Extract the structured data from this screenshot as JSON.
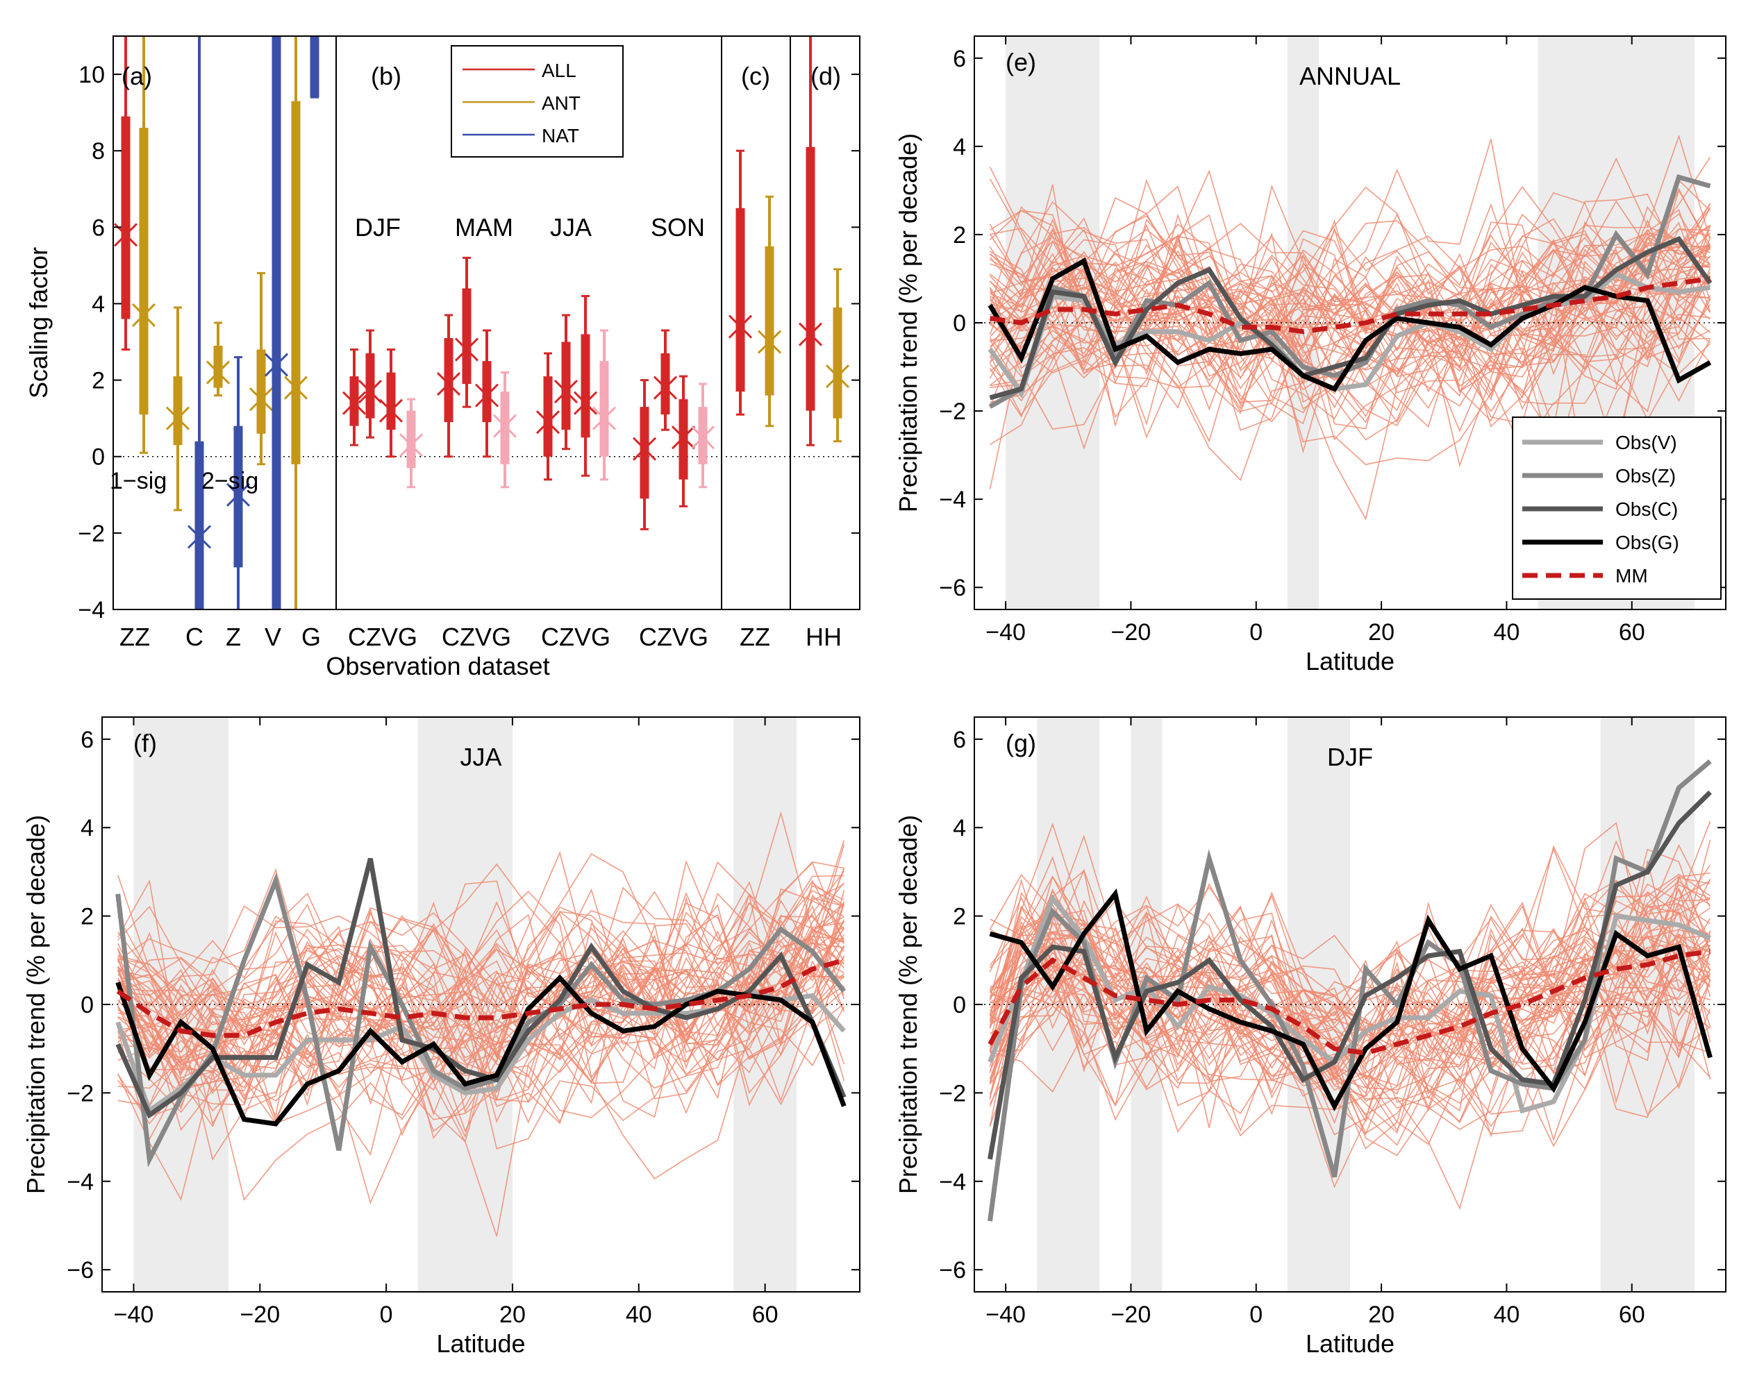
{
  "chart_data": [
    {
      "id": "scaling",
      "type": "errorbar",
      "ylabel": "Scaling factor",
      "xlabel": "Observation dataset",
      "ylim": [
        -4,
        11
      ],
      "yticks": [
        -4,
        -2,
        0,
        2,
        4,
        6,
        8,
        10
      ],
      "legend": {
        "placement": "top-center",
        "entries": [
          {
            "name": "ALL",
            "color": "#d62728"
          },
          {
            "name": "ANT",
            "color": "#c4961a"
          },
          {
            "name": "NAT",
            "color": "#3a4fa8"
          }
        ]
      },
      "panel_labels": [
        "(a)",
        "(b)",
        "(c)",
        "(d)"
      ],
      "season_labels": [
        "DJF",
        "MAM",
        "JJA",
        "SON"
      ],
      "sig_labels": [
        "1−sig",
        "2−sig"
      ],
      "xtick_labels": [
        "ZZ",
        "C",
        "Z",
        "V",
        "G",
        "CZVG",
        "CZVG",
        "CZVG",
        "CZVG",
        "ZZ",
        "HH"
      ],
      "groups": [
        {
          "panel": "a",
          "forcing": "ALL",
          "dataset": "Z",
          "best": 5.8,
          "lo1": 3.6,
          "hi1": 8.9,
          "lo2": 2.8,
          "hi2": 11
        },
        {
          "panel": "a",
          "forcing": "ANT",
          "dataset": "Z",
          "best": 3.7,
          "lo1": 1.1,
          "hi1": 8.6,
          "lo2": 0.1,
          "hi2": 11
        },
        {
          "panel": "a",
          "forcing": "ANT",
          "dataset": "C",
          "best": 1.0,
          "lo1": 0.3,
          "hi1": 2.1,
          "lo2": -1.4,
          "hi2": 3.9
        },
        {
          "panel": "a",
          "forcing": "NAT",
          "dataset": "C",
          "best": -2.1,
          "lo1": -4,
          "hi1": 0.4,
          "lo2": -4,
          "hi2": 11
        },
        {
          "panel": "a",
          "forcing": "ANT",
          "dataset": "Z",
          "best": 2.2,
          "lo1": 1.8,
          "hi1": 2.9,
          "lo2": 1.6,
          "hi2": 3.5
        },
        {
          "panel": "a",
          "forcing": "NAT",
          "dataset": "Z",
          "best": -1.0,
          "lo1": -2.9,
          "hi1": 0.8,
          "lo2": -4,
          "hi2": 2.6
        },
        {
          "panel": "a",
          "forcing": "ANT",
          "dataset": "V",
          "best": 1.5,
          "lo1": 0.6,
          "hi1": 2.8,
          "lo2": -0.2,
          "hi2": 4.8
        },
        {
          "panel": "a",
          "forcing": "NAT",
          "dataset": "V",
          "best": 2.4,
          "lo1": -4,
          "hi1": 11,
          "lo2": -4,
          "hi2": 11
        },
        {
          "panel": "a",
          "forcing": "ANT",
          "dataset": "G",
          "best": 1.8,
          "lo1": -0.2,
          "hi1": 9.3,
          "lo2": -4,
          "hi2": 11
        },
        {
          "panel": "a",
          "forcing": "NAT",
          "dataset": "G",
          "best": 11,
          "lo1": 9.4,
          "hi1": 11,
          "lo2": 9.4,
          "hi2": 11
        },
        {
          "panel": "b",
          "season": "DJF",
          "dataset": "C",
          "best": 1.4,
          "lo1": 0.8,
          "hi1": 2.1,
          "lo2": 0.3,
          "hi2": 2.8,
          "faded": false
        },
        {
          "panel": "b",
          "season": "DJF",
          "dataset": "Z",
          "best": 1.7,
          "lo1": 1.0,
          "hi1": 2.7,
          "lo2": 0.5,
          "hi2": 3.3,
          "faded": false
        },
        {
          "panel": "b",
          "season": "DJF",
          "dataset": "V",
          "best": 1.2,
          "lo1": 0.7,
          "hi1": 2.2,
          "lo2": 0.0,
          "hi2": 2.8,
          "faded": false
        },
        {
          "panel": "b",
          "season": "DJF",
          "dataset": "G",
          "best": 0.3,
          "lo1": -0.3,
          "hi1": 1.2,
          "lo2": -0.8,
          "hi2": 1.5,
          "faded": true
        },
        {
          "panel": "b",
          "season": "MAM",
          "dataset": "C",
          "best": 1.9,
          "lo1": 0.9,
          "hi1": 3.1,
          "lo2": 0.0,
          "hi2": 3.7,
          "faded": false
        },
        {
          "panel": "b",
          "season": "MAM",
          "dataset": "Z",
          "best": 2.8,
          "lo1": 1.9,
          "hi1": 4.4,
          "lo2": 1.3,
          "hi2": 5.2,
          "faded": false
        },
        {
          "panel": "b",
          "season": "MAM",
          "dataset": "V",
          "best": 1.6,
          "lo1": 0.9,
          "hi1": 2.5,
          "lo2": 0.0,
          "hi2": 3.3,
          "faded": false
        },
        {
          "panel": "b",
          "season": "MAM",
          "dataset": "G",
          "best": 0.8,
          "lo1": -0.2,
          "hi1": 1.7,
          "lo2": -0.8,
          "hi2": 2.2,
          "faded": true
        },
        {
          "panel": "b",
          "season": "JJA",
          "dataset": "C",
          "best": 0.9,
          "lo1": 0.0,
          "hi1": 2.1,
          "lo2": -0.6,
          "hi2": 2.7,
          "faded": false
        },
        {
          "panel": "b",
          "season": "JJA",
          "dataset": "Z",
          "best": 1.7,
          "lo1": 0.7,
          "hi1": 3.0,
          "lo2": 0.2,
          "hi2": 3.7,
          "faded": false
        },
        {
          "panel": "b",
          "season": "JJA",
          "dataset": "V",
          "best": 1.4,
          "lo1": 0.5,
          "hi1": 3.2,
          "lo2": -0.5,
          "hi2": 4.2,
          "faded": false
        },
        {
          "panel": "b",
          "season": "JJA",
          "dataset": "G",
          "best": 1.0,
          "lo1": 0.0,
          "hi1": 2.5,
          "lo2": -0.6,
          "hi2": 3.3,
          "faded": true
        },
        {
          "panel": "b",
          "season": "SON",
          "dataset": "C",
          "best": 0.2,
          "lo1": -1.1,
          "hi1": 1.3,
          "lo2": -1.9,
          "hi2": 2.0,
          "faded": false
        },
        {
          "panel": "b",
          "season": "SON",
          "dataset": "Z",
          "best": 1.8,
          "lo1": 1.1,
          "hi1": 2.7,
          "lo2": 0.7,
          "hi2": 3.3,
          "faded": false
        },
        {
          "panel": "b",
          "season": "SON",
          "dataset": "V",
          "best": 0.5,
          "lo1": -0.6,
          "hi1": 1.5,
          "lo2": -1.3,
          "hi2": 2.1,
          "faded": false
        },
        {
          "panel": "b",
          "season": "SON",
          "dataset": "G",
          "best": 0.5,
          "lo1": -0.2,
          "hi1": 1.3,
          "lo2": -0.8,
          "hi2": 1.9,
          "faded": true
        },
        {
          "panel": "c",
          "forcing": "ALL",
          "dataset": "Z",
          "best": 3.4,
          "lo1": 1.7,
          "hi1": 6.5,
          "lo2": 1.1,
          "hi2": 8.0
        },
        {
          "panel": "c",
          "forcing": "ANT",
          "dataset": "Z",
          "best": 3.0,
          "lo1": 1.6,
          "hi1": 5.5,
          "lo2": 0.8,
          "hi2": 6.8
        },
        {
          "panel": "d",
          "forcing": "ALL",
          "dataset": "H",
          "best": 3.2,
          "lo1": 1.2,
          "hi1": 8.1,
          "lo2": 0.3,
          "hi2": 11
        },
        {
          "panel": "d",
          "forcing": "ANT",
          "dataset": "H",
          "best": 2.1,
          "lo1": 1.0,
          "hi1": 3.9,
          "lo2": 0.4,
          "hi2": 4.9
        }
      ]
    },
    {
      "id": "annual",
      "type": "line",
      "panel_label": "(e)",
      "title": "ANNUAL",
      "xlabel": "Latitude",
      "ylabel": "Precipitation trend (% per decade)",
      "xlim": [
        -45,
        75
      ],
      "ylim": [
        -6.5,
        6.5
      ],
      "xticks": [
        -40,
        -20,
        0,
        20,
        40,
        60
      ],
      "yticks": [
        -6,
        -4,
        -2,
        0,
        2,
        4,
        6
      ],
      "legend": {
        "placement": "bottom-right",
        "entries": [
          {
            "name": "Obs(V)",
            "color": "#aaaaaa"
          },
          {
            "name": "Obs(Z)",
            "color": "#878787"
          },
          {
            "name": "Obs(C)",
            "color": "#555555"
          },
          {
            "name": "Obs(G)",
            "color": "#000000"
          },
          {
            "name": "MM",
            "color": "#c41a1a"
          }
        ]
      },
      "shaded_lat_bands": [
        [
          -40,
          -35
        ],
        [
          -35,
          -25
        ],
        [
          5,
          10
        ],
        [
          45,
          70
        ]
      ],
      "x": [
        -42.5,
        -37.5,
        -32.5,
        -27.5,
        -22.5,
        -17.5,
        -12.5,
        -7.5,
        -2.5,
        2.5,
        7.5,
        12.5,
        17.5,
        22.5,
        27.5,
        32.5,
        37.5,
        42.5,
        47.5,
        52.5,
        57.5,
        62.5,
        67.5,
        72.5
      ],
      "series": [
        {
          "name": "Obs(V)",
          "values": [
            -0.6,
            -1.6,
            0.6,
            0.5,
            -0.5,
            -0.2,
            -0.2,
            -0.4,
            0.0,
            -0.4,
            -1.2,
            -1.5,
            -1.4,
            -0.3,
            0.0,
            -0.2,
            -0.6,
            0.1,
            0.4,
            0.5,
            1.1,
            0.8,
            0.7,
            0.8
          ]
        },
        {
          "name": "Obs(Z)",
          "values": [
            -1.9,
            -1.5,
            0.8,
            0.6,
            -0.8,
            0.5,
            0.4,
            0.9,
            -0.4,
            -0.2,
            -1.0,
            -1.2,
            -0.9,
            0.3,
            0.5,
            0.4,
            -0.1,
            0.2,
            0.5,
            0.6,
            2.0,
            1.1,
            3.3,
            3.1
          ]
        },
        {
          "name": "Obs(C)",
          "values": [
            -1.7,
            -1.5,
            0.7,
            0.6,
            -0.9,
            0.3,
            0.9,
            1.2,
            0.1,
            -0.5,
            -1.2,
            -1.0,
            -0.8,
            0.2,
            0.4,
            0.5,
            0.2,
            0.4,
            0.6,
            0.6,
            1.2,
            1.6,
            1.9,
            0.9
          ]
        },
        {
          "name": "Obs(G)",
          "values": [
            0.4,
            -0.8,
            1.0,
            1.4,
            -0.6,
            -0.3,
            -0.9,
            -0.6,
            -0.7,
            -0.6,
            -1.2,
            -1.5,
            -0.4,
            0.1,
            0.0,
            -0.1,
            -0.5,
            0.1,
            0.4,
            0.8,
            0.6,
            0.5,
            -1.3,
            -0.9
          ]
        },
        {
          "name": "MM",
          "values": [
            0.1,
            0.0,
            0.3,
            0.3,
            0.2,
            0.3,
            0.4,
            0.2,
            -0.1,
            -0.1,
            -0.2,
            -0.1,
            0.0,
            0.2,
            0.2,
            0.2,
            0.2,
            0.3,
            0.4,
            0.5,
            0.6,
            0.8,
            0.9,
            1.0
          ]
        }
      ]
    },
    {
      "id": "jja",
      "type": "line",
      "panel_label": "(f)",
      "title": "JJA",
      "xlabel": "Latitude",
      "ylabel": "Precipitation trend (% per decade)",
      "xlim": [
        -45,
        75
      ],
      "ylim": [
        -6.5,
        6.5
      ],
      "xticks": [
        -40,
        -20,
        0,
        20,
        40,
        60
      ],
      "yticks": [
        -6,
        -4,
        -2,
        0,
        2,
        4,
        6
      ],
      "shaded_lat_bands": [
        [
          -40,
          -25
        ],
        [
          5,
          20
        ],
        [
          55,
          65
        ]
      ],
      "x": [
        -42.5,
        -37.5,
        -32.5,
        -27.5,
        -22.5,
        -17.5,
        -12.5,
        -7.5,
        -2.5,
        2.5,
        7.5,
        12.5,
        17.5,
        22.5,
        27.5,
        32.5,
        37.5,
        42.5,
        47.5,
        52.5,
        57.5,
        62.5,
        67.5,
        72.5
      ],
      "series": [
        {
          "name": "Obs(V)",
          "values": [
            -0.4,
            -2.4,
            -1.9,
            -1.2,
            -1.6,
            -1.6,
            -0.8,
            -0.8,
            -0.8,
            -0.5,
            -1.6,
            -2.0,
            -1.9,
            -0.8,
            -0.2,
            0.1,
            -0.2,
            -0.2,
            -0.2,
            -0.1,
            0.3,
            0.1,
            0.2,
            -0.6
          ]
        },
        {
          "name": "Obs(Z)",
          "values": [
            2.5,
            -3.5,
            -2.1,
            -1.1,
            1.0,
            2.8,
            0.1,
            -3.3,
            1.3,
            0.0,
            -1.5,
            -1.9,
            -1.7,
            -0.4,
            0.0,
            0.9,
            0.1,
            0.0,
            0.1,
            0.3,
            0.8,
            1.7,
            1.2,
            0.3
          ]
        },
        {
          "name": "Obs(C)",
          "values": [
            -0.9,
            -2.5,
            -2.0,
            -1.2,
            -1.2,
            -1.2,
            0.9,
            0.5,
            3.3,
            -0.8,
            -1.0,
            -1.5,
            -1.7,
            -0.6,
            0.1,
            1.3,
            0.3,
            -0.1,
            -0.3,
            -0.1,
            0.3,
            1.1,
            -0.4,
            -2.1
          ]
        },
        {
          "name": "Obs(G)",
          "values": [
            0.5,
            -1.6,
            -0.4,
            -1.0,
            -2.6,
            -2.7,
            -1.8,
            -1.5,
            -0.6,
            -1.3,
            -0.9,
            -1.8,
            -1.6,
            -0.1,
            0.6,
            -0.2,
            -0.6,
            -0.5,
            0.0,
            0.3,
            0.2,
            0.1,
            -0.4,
            -2.3
          ]
        },
        {
          "name": "MM",
          "values": [
            0.3,
            -0.2,
            -0.6,
            -0.7,
            -0.7,
            -0.4,
            -0.2,
            -0.1,
            -0.2,
            -0.3,
            -0.2,
            -0.3,
            -0.3,
            -0.2,
            -0.1,
            0.0,
            0.0,
            -0.1,
            0.0,
            0.1,
            0.2,
            0.4,
            0.8,
            1.0
          ]
        }
      ]
    },
    {
      "id": "djf",
      "type": "line",
      "panel_label": "(g)",
      "title": "DJF",
      "xlabel": "Latitude",
      "ylabel": "Precipitation trend (% per decade)",
      "xlim": [
        -45,
        75
      ],
      "ylim": [
        -6.5,
        6.5
      ],
      "xticks": [
        -40,
        -20,
        0,
        20,
        40,
        60
      ],
      "yticks": [
        -6,
        -4,
        -2,
        0,
        2,
        4,
        6
      ],
      "shaded_lat_bands": [
        [
          -35,
          -25
        ],
        [
          -20,
          -15
        ],
        [
          5,
          15
        ],
        [
          55,
          70
        ]
      ],
      "x": [
        -42.5,
        -37.5,
        -32.5,
        -27.5,
        -22.5,
        -17.5,
        -12.5,
        -7.5,
        -2.5,
        2.5,
        7.5,
        12.5,
        17.5,
        22.5,
        27.5,
        32.5,
        37.5,
        42.5,
        47.5,
        52.5,
        57.5,
        62.5,
        67.5,
        72.5
      ],
      "series": [
        {
          "name": "Obs(V)",
          "values": [
            -1.3,
            0.5,
            2.4,
            1.5,
            0.1,
            0.4,
            -0.5,
            0.4,
            0.2,
            -0.2,
            -0.8,
            -1.3,
            -0.6,
            -0.3,
            -0.3,
            0.3,
            0.2,
            -2.4,
            -2.2,
            -0.8,
            2.0,
            1.9,
            1.8,
            1.5
          ]
        },
        {
          "name": "Obs(Z)",
          "values": [
            -4.9,
            0.4,
            2.1,
            1.4,
            -1.3,
            0.6,
            0.1,
            3.3,
            1.0,
            0.0,
            -1.4,
            -3.9,
            0.8,
            0.0,
            1.4,
            0.9,
            -1.5,
            -1.8,
            -1.9,
            -0.8,
            3.3,
            3.0,
            4.9,
            5.5
          ]
        },
        {
          "name": "Obs(C)",
          "values": [
            -3.5,
            0.6,
            1.3,
            1.2,
            -1.2,
            0.3,
            0.5,
            1.0,
            0.1,
            -0.5,
            -1.7,
            -1.3,
            0.2,
            0.6,
            1.1,
            1.2,
            -1.0,
            -1.7,
            -1.8,
            0.1,
            2.7,
            3.0,
            4.1,
            4.8
          ]
        },
        {
          "name": "Obs(G)",
          "values": [
            1.6,
            1.4,
            0.4,
            1.6,
            2.5,
            -0.6,
            0.3,
            -0.1,
            -0.4,
            -0.6,
            -0.9,
            -2.3,
            -1.0,
            -0.4,
            1.9,
            0.8,
            1.1,
            -1.0,
            -1.9,
            -0.4,
            1.6,
            1.1,
            1.3,
            -1.2
          ]
        },
        {
          "name": "MM",
          "values": [
            -0.9,
            0.4,
            1.0,
            0.6,
            0.2,
            0.1,
            0.0,
            0.1,
            0.1,
            -0.1,
            -0.5,
            -1.0,
            -1.1,
            -0.9,
            -0.7,
            -0.5,
            -0.2,
            0.0,
            0.3,
            0.6,
            0.8,
            0.9,
            1.1,
            1.2
          ]
        }
      ]
    }
  ]
}
